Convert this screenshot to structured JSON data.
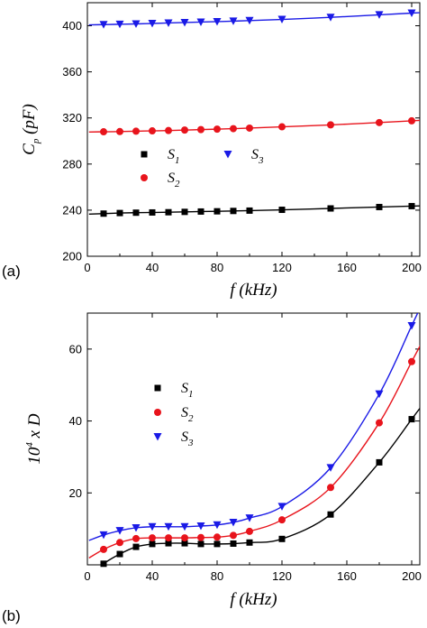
{
  "chart_data": [
    {
      "panel_label": "(a)",
      "type": "scatter",
      "xlabel": "f (kHz)",
      "ylabel_main": "C",
      "ylabel_sub": "p",
      "ylabel_rest": " (pF)",
      "xlim": [
        0,
        205
      ],
      "ylim": [
        200,
        420
      ],
      "xticks": [
        0,
        40,
        80,
        120,
        160,
        200
      ],
      "yticks": [
        200,
        240,
        280,
        320,
        360,
        400
      ],
      "legend_position": "left-middle",
      "series": [
        {
          "name_main": "S",
          "name_sub": "1",
          "color": "#000000",
          "marker": "square",
          "x": [
            10,
            20,
            30,
            40,
            50,
            60,
            70,
            80,
            90,
            100,
            120,
            150,
            180,
            200
          ],
          "y": [
            237,
            237.5,
            237.8,
            238,
            238.2,
            238.5,
            238.8,
            239,
            239.3,
            239.6,
            240.3,
            241.5,
            242.7,
            243.5
          ]
        },
        {
          "name_main": "S",
          "name_sub": "2",
          "color": "#e8141c",
          "marker": "circle",
          "x": [
            10,
            20,
            30,
            40,
            50,
            60,
            70,
            80,
            90,
            100,
            120,
            150,
            180,
            200
          ],
          "y": [
            308,
            308.2,
            308.5,
            308.8,
            309.1,
            309.5,
            309.9,
            310.3,
            310.7,
            311.2,
            312.3,
            314,
            316,
            317.5
          ]
        },
        {
          "name_main": "S",
          "name_sub": "3",
          "color": "#1a1ae6",
          "marker": "triangle-down",
          "x": [
            10,
            20,
            30,
            40,
            50,
            60,
            70,
            80,
            90,
            100,
            120,
            150,
            180,
            200
          ],
          "y": [
            401,
            401.3,
            401.6,
            402,
            402.4,
            402.8,
            403.2,
            403.6,
            404,
            404.5,
            405.5,
            407.3,
            409.5,
            411
          ]
        }
      ]
    },
    {
      "panel_label": "(b)",
      "type": "scatter",
      "xlabel": "f (kHz)",
      "ylabel_main": "10",
      "ylabel_sup": "4",
      "ylabel_rest": " x D",
      "xlim": [
        0,
        205
      ],
      "ylim": [
        0,
        70
      ],
      "xticks": [
        0,
        40,
        80,
        120,
        160,
        200
      ],
      "yticks": [
        20,
        40,
        60
      ],
      "legend_position": "top-left",
      "series": [
        {
          "name_main": "S",
          "name_sub": "1",
          "color": "#000000",
          "marker": "square",
          "x": [
            10,
            20,
            30,
            40,
            50,
            60,
            70,
            80,
            90,
            100,
            120,
            150,
            180,
            200
          ],
          "y": [
            0.3,
            3,
            5,
            5.8,
            6,
            6,
            5.8,
            5.8,
            5.9,
            6.2,
            7.2,
            14,
            28.5,
            40.5
          ]
        },
        {
          "name_main": "S",
          "name_sub": "2",
          "color": "#e8141c",
          "marker": "circle",
          "x": [
            10,
            20,
            30,
            40,
            50,
            60,
            70,
            80,
            90,
            100,
            120,
            150,
            180,
            200
          ],
          "y": [
            4.3,
            6.2,
            7.3,
            7.5,
            7.5,
            7.5,
            7.6,
            7.7,
            8.2,
            9.3,
            12.5,
            21.5,
            39.5,
            56.5
          ]
        },
        {
          "name_main": "S",
          "name_sub": "3",
          "color": "#1a1ae6",
          "marker": "triangle-down",
          "x": [
            10,
            20,
            30,
            40,
            50,
            60,
            70,
            80,
            90,
            100,
            120,
            150,
            180,
            200
          ],
          "y": [
            8.3,
            9.5,
            10.3,
            10.6,
            10.6,
            10.6,
            10.8,
            11.1,
            11.8,
            13,
            16.2,
            27,
            47.5,
            66.5
          ]
        }
      ]
    }
  ]
}
